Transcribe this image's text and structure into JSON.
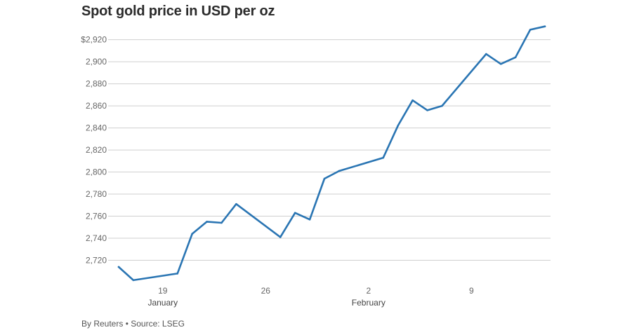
{
  "title": "Spot gold price in USD per oz",
  "footer": "By Reuters • Source: LSEG",
  "colors": {
    "line": "#2a75b3",
    "grid": "#cfcfcf",
    "tick_text": "#666666"
  },
  "chart_data": {
    "type": "line",
    "title": "Spot gold price in USD per oz",
    "xlabel": "",
    "ylabel": "",
    "ylim": [
      2700,
      2935
    ],
    "yticks": [
      2720,
      2740,
      2760,
      2780,
      2800,
      2820,
      2840,
      2860,
      2880,
      2900,
      2920
    ],
    "ytick_labels": [
      "2,720",
      "2,740",
      "2,760",
      "2,780",
      "2,800",
      "2,820",
      "2,840",
      "2,860",
      "2,880",
      "2,900",
      "$2,920"
    ],
    "xlim": [
      "2025-01-16",
      "2025-02-14"
    ],
    "xticks": [
      {
        "date": "2025-01-19",
        "label": "19",
        "sublabel": "January"
      },
      {
        "date": "2025-01-26",
        "label": "26",
        "sublabel": ""
      },
      {
        "date": "2025-02-02",
        "label": "2",
        "sublabel": "February"
      },
      {
        "date": "2025-02-09",
        "label": "9",
        "sublabel": ""
      }
    ],
    "grid": true,
    "series": [
      {
        "x": [
          "2025-01-16",
          "2025-01-17",
          "2025-01-20",
          "2025-01-21",
          "2025-01-22",
          "2025-01-23",
          "2025-01-24",
          "2025-01-27",
          "2025-01-28",
          "2025-01-29",
          "2025-01-30",
          "2025-01-31",
          "2025-02-03",
          "2025-02-04",
          "2025-02-05",
          "2025-02-06",
          "2025-02-07",
          "2025-02-10",
          "2025-02-11",
          "2025-02-12",
          "2025-02-13",
          "2025-02-14"
        ],
        "values": [
          2714,
          2702,
          2708,
          2744,
          2755,
          2754,
          2771,
          2741,
          2763,
          2757,
          2794,
          2801,
          2813,
          2842,
          2865,
          2856,
          2860,
          2907,
          2898,
          2904,
          2929,
          2932
        ]
      }
    ]
  }
}
